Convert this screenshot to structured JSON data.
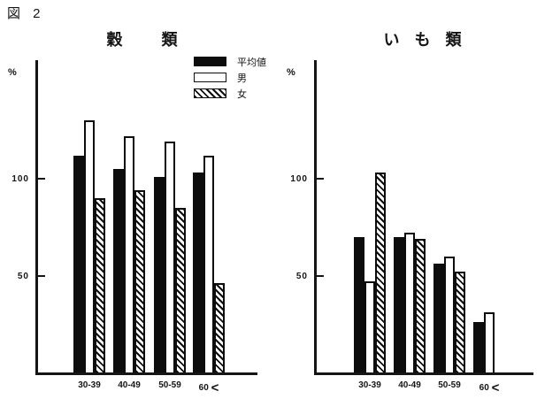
{
  "figure_label": "図 2",
  "legend": {
    "items": [
      {
        "label": "平均値",
        "style": "mean",
        "fill": "#0d0d0d"
      },
      {
        "label": "男",
        "style": "male",
        "fill": "#ffffff"
      },
      {
        "label": "女",
        "style": "female",
        "fill": "diagonal-hatch"
      }
    ]
  },
  "chart_data": [
    {
      "type": "bar",
      "title": "穀　類",
      "unit": "%",
      "ylabel": "%",
      "xlabel": "",
      "categories": [
        "30-39",
        "40-49",
        "50-59",
        "60 <"
      ],
      "series": [
        {
          "name": "平均値",
          "style": "mean",
          "values": [
            112,
            105,
            101,
            103
          ]
        },
        {
          "name": "男",
          "style": "male",
          "values": [
            130,
            122,
            119,
            112
          ]
        },
        {
          "name": "女",
          "style": "female",
          "values": [
            90,
            94,
            85,
            46
          ]
        }
      ],
      "yticks": [
        50,
        100
      ],
      "ylim": [
        0,
        160
      ],
      "grid": false,
      "legend_position": "top-right-of-plot"
    },
    {
      "type": "bar",
      "title": "い も 類",
      "unit": "%",
      "ylabel": "%",
      "xlabel": "",
      "categories": [
        "30-39",
        "40-49",
        "50-59",
        "60 <"
      ],
      "series": [
        {
          "name": "平均値",
          "style": "mean",
          "values": [
            70,
            70,
            56,
            26
          ]
        },
        {
          "name": "男",
          "style": "male",
          "values": [
            47,
            72,
            60,
            31
          ]
        },
        {
          "name": "女",
          "style": "female",
          "values": [
            103,
            69,
            52,
            null
          ]
        }
      ],
      "yticks": [
        50,
        100
      ],
      "ylim": [
        0,
        160
      ],
      "grid": false,
      "legend_position": "none"
    }
  ]
}
